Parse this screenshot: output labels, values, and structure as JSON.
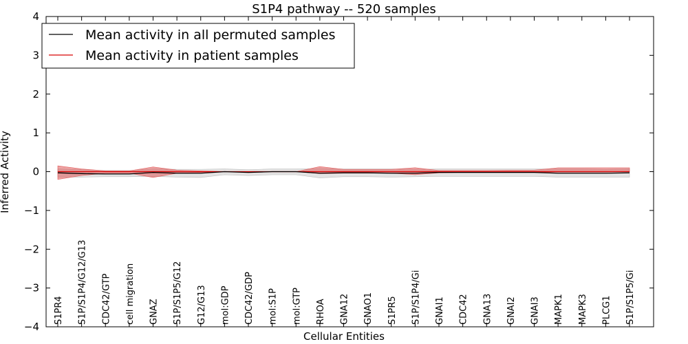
{
  "chart_data": {
    "type": "line",
    "title": "S1P4 pathway -- 520 samples",
    "xlabel": "Cellular Entities",
    "ylabel": "Inferred Activity",
    "ylim": [
      -4,
      4
    ],
    "yticks": [
      -4,
      -3,
      -2,
      -1,
      0,
      1,
      2,
      3,
      4
    ],
    "ytick_labels": [
      "−4",
      "−3",
      "−2",
      "−1",
      "0",
      "1",
      "2",
      "3",
      "4"
    ],
    "categories": [
      "S1PR4",
      "S1P/S1P4/G12/G13",
      "CDC42/GTP",
      "cell migration",
      "GNAZ",
      "S1P/S1P5/G12",
      "G12/G13",
      "mol:GDP",
      "CDC42/GDP",
      "mol:S1P",
      "mol:GTP",
      "RHOA",
      "GNA12",
      "GNAO1",
      "S1PR5",
      "S1P/S1P4/Gi",
      "GNAI1",
      "CDC42",
      "GNA13",
      "GNAI2",
      "GNAI3",
      "MAPK1",
      "MAPK3",
      "PLCG1",
      "S1P/S1P5/Gi"
    ],
    "legend_position": "top-left",
    "series": [
      {
        "name": "Mean activity in all permuted samples",
        "color": "#000000",
        "values": [
          -0.03,
          -0.05,
          -0.06,
          -0.06,
          -0.02,
          -0.04,
          -0.04,
          0.0,
          -0.02,
          0.0,
          0.0,
          -0.04,
          -0.03,
          -0.03,
          -0.04,
          -0.04,
          -0.02,
          -0.02,
          -0.02,
          -0.02,
          -0.02,
          -0.04,
          -0.04,
          -0.04,
          -0.03
        ],
        "band_lower": [
          -0.14,
          -0.14,
          -0.13,
          -0.13,
          -0.12,
          -0.14,
          -0.15,
          -0.08,
          -0.1,
          -0.08,
          -0.08,
          -0.16,
          -0.13,
          -0.13,
          -0.14,
          -0.13,
          -0.12,
          -0.12,
          -0.12,
          -0.12,
          -0.12,
          -0.14,
          -0.14,
          -0.14,
          -0.14
        ],
        "band_upper": [
          0.07,
          0.05,
          0.03,
          0.03,
          0.07,
          0.06,
          0.06,
          0.07,
          0.05,
          0.07,
          0.07,
          0.08,
          0.07,
          0.07,
          0.07,
          0.06,
          0.07,
          0.07,
          0.07,
          0.07,
          0.07,
          0.07,
          0.07,
          0.06,
          0.07
        ],
        "band_color": "#d9d9d9"
      },
      {
        "name": "Mean activity in patient samples",
        "color": "#d60000",
        "values": [
          0.0,
          0.0,
          0.0,
          0.0,
          0.0,
          0.0,
          0.0,
          0.0,
          0.0,
          0.0,
          0.0,
          0.0,
          0.0,
          0.0,
          0.0,
          0.0,
          0.0,
          0.0,
          0.0,
          0.0,
          0.0,
          0.0,
          0.0,
          0.0,
          0.0
        ],
        "band_lower": [
          -0.2,
          -0.1,
          -0.04,
          -0.04,
          -0.15,
          -0.04,
          -0.02,
          0.0,
          0.0,
          0.0,
          0.0,
          -0.05,
          -0.04,
          -0.04,
          -0.04,
          -0.08,
          -0.03,
          -0.02,
          -0.02,
          -0.02,
          -0.02,
          -0.01,
          -0.01,
          -0.01,
          0.0
        ],
        "band_upper": [
          0.15,
          0.07,
          0.02,
          0.02,
          0.12,
          0.04,
          0.02,
          0.0,
          0.0,
          0.0,
          0.0,
          0.13,
          0.06,
          0.06,
          0.06,
          0.1,
          0.03,
          0.03,
          0.03,
          0.04,
          0.04,
          0.1,
          0.1,
          0.1,
          0.1
        ],
        "band_color": "#e05a5a"
      }
    ]
  }
}
